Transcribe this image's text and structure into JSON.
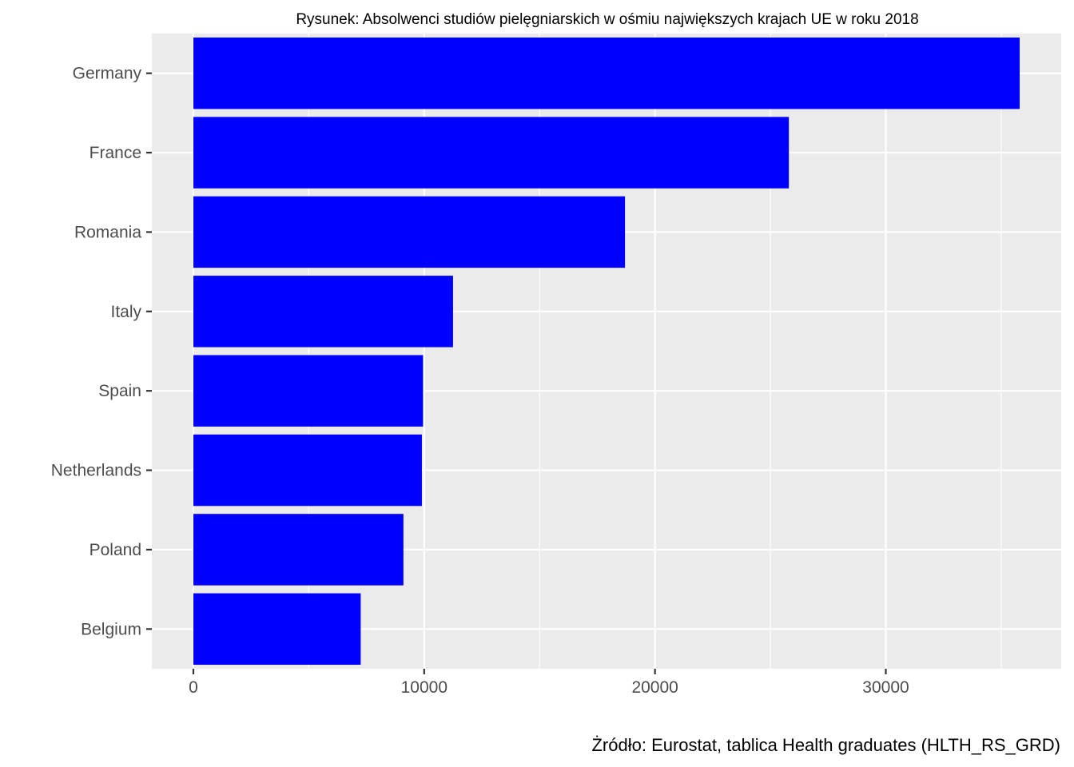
{
  "chart_data": {
    "type": "bar",
    "orientation": "horizontal",
    "title": "Rysunek: Absolwenci studiów pielęgniarskich w ośmiu największych krajach UE w roku 2018",
    "caption": "Żródło: Eurostat, tablica Health graduates (HLTH_RS_GRD)",
    "xlabel": "",
    "ylabel": "",
    "categories": [
      "Germany",
      "France",
      "Romania",
      "Italy",
      "Spain",
      "Netherlands",
      "Poland",
      "Belgium"
    ],
    "values": [
      35800,
      25800,
      18700,
      11250,
      9950,
      9900,
      9100,
      7250
    ],
    "xlim": [
      -1800,
      37600
    ],
    "xticks": [
      0,
      10000,
      20000,
      30000
    ],
    "xtick_labels": [
      "0",
      "10000",
      "20000",
      "30000"
    ],
    "grid": true,
    "bar_color": "#0000ff",
    "panel_color": "#ebebeb",
    "grid_color": "#ffffff"
  }
}
